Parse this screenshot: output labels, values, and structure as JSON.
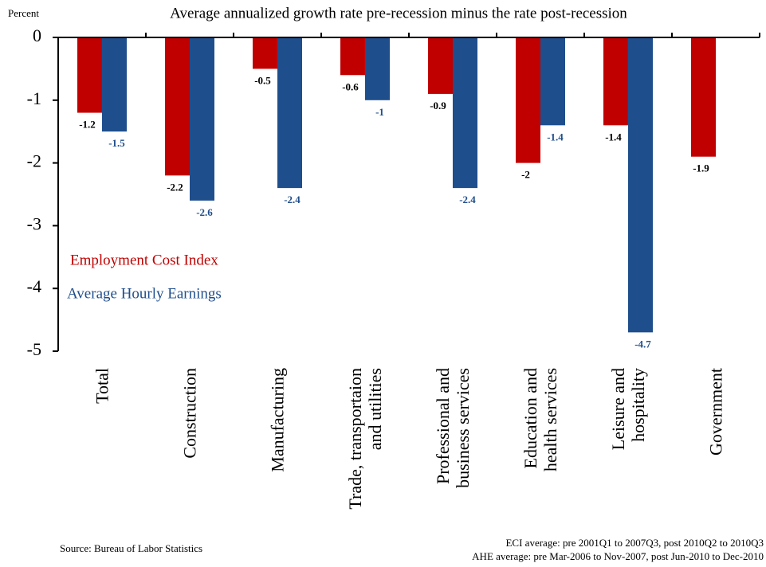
{
  "chart_data": {
    "type": "bar",
    "title": "Average annualized growth rate pre-recession minus the rate post-recession",
    "ylabel": "Percent",
    "categories": [
      "Total",
      "Construction",
      "Manufacturing",
      "Trade, transportaion\nand utilities",
      "Professional and\nbusiness services",
      "Education and\nhealth services",
      "Leisure and\nhospitality",
      "Government"
    ],
    "series": [
      {
        "name": "Employment Cost Index",
        "color": "#c00000",
        "values": [
          -1.2,
          -2.2,
          -0.5,
          -0.6,
          -0.9,
          -2,
          -1.4,
          -1.9
        ]
      },
      {
        "name": "Average Hourly Earnings",
        "color": "#1f4e8c",
        "values": [
          -1.5,
          -2.6,
          -2.4,
          -1,
          -2.4,
          -1.4,
          -4.7,
          null
        ]
      }
    ],
    "ylim": [
      0,
      -5
    ],
    "yticks": [
      0,
      -1,
      -2,
      -3,
      -4,
      -5
    ],
    "source": "Source: Bureau of Labor Statistics",
    "notes": [
      "ECI average: pre 2001Q1 to 2007Q3, post 2010Q2 to 2010Q3",
      "AHE average: pre Mar-2006 to Nov-2007, post Jun-2010 to Dec-2010"
    ]
  }
}
